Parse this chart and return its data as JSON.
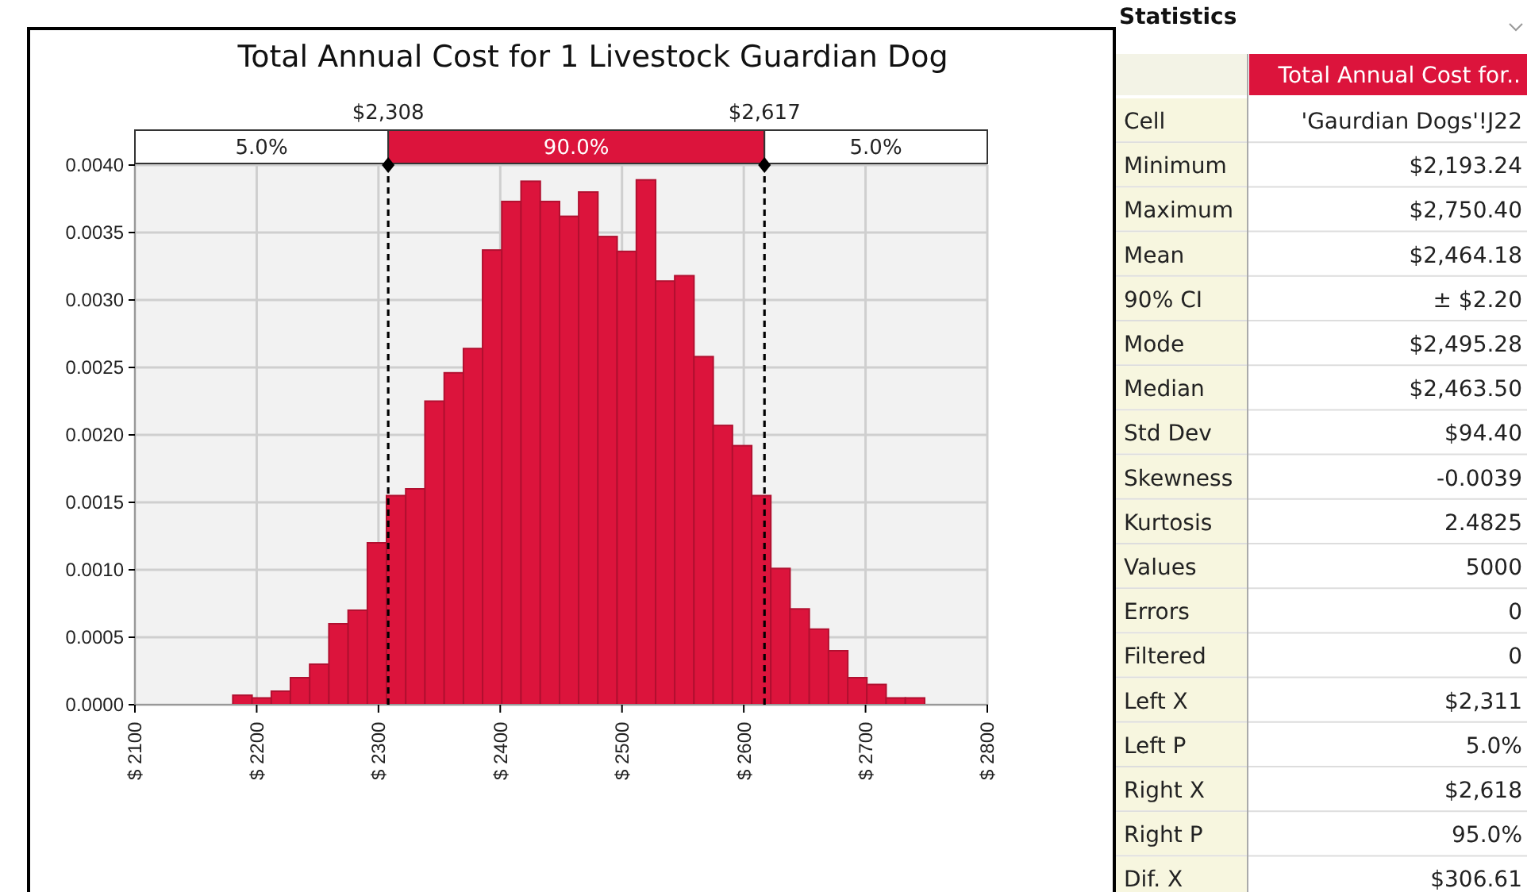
{
  "chart_data": [
    {
      "type": "histogram",
      "title": "Total Annual Cost for 1 Livestock Guardian Dog",
      "bins": [
        2180.4,
        2196.2,
        2212.0,
        2227.7,
        2243.5,
        2259.3,
        2275.1,
        2290.9,
        2306.6,
        2322.4,
        2338.2,
        2354.0,
        2369.8,
        2385.5,
        2401.3,
        2417.1,
        2432.9,
        2448.7,
        2464.4,
        2480.2,
        2496.0,
        2511.8,
        2527.6,
        2543.3,
        2559.1,
        2574.9,
        2590.7,
        2606.5,
        2622.2,
        2638.0,
        2653.8,
        2669.6,
        2685.4,
        2701.1,
        2716.9,
        2732.7,
        2748.5
      ],
      "values": [
        7e-05,
        5e-05,
        0.0001,
        0.0002,
        0.0003,
        0.0006,
        0.0007,
        0.0012,
        0.00155,
        0.0016,
        0.00225,
        0.00246,
        0.00264,
        0.00337,
        0.00373,
        0.00388,
        0.00373,
        0.00362,
        0.0038,
        0.00347,
        0.00336,
        0.00389,
        0.00314,
        0.00318,
        0.00258,
        0.00207,
        0.00192,
        0.00155,
        0.00101,
        0.00071,
        0.00056,
        0.0004,
        0.0002,
        0.00015,
        5e-05,
        5e-05
      ],
      "color": "#dc143c",
      "xlim": [
        2100,
        2800
      ],
      "xticks": [
        {
          "value": 2100,
          "label": "$ 2100"
        },
        {
          "value": 2200,
          "label": "$ 2200"
        },
        {
          "value": 2300,
          "label": "$ 2300"
        },
        {
          "value": 2400,
          "label": "$ 2400"
        },
        {
          "value": 2500,
          "label": "$ 2500"
        },
        {
          "value": 2600,
          "label": "$ 2600"
        },
        {
          "value": 2700,
          "label": "$ 2700"
        },
        {
          "value": 2800,
          "label": "$ 2800"
        }
      ],
      "ylim": [
        0,
        0.004
      ],
      "yticks": [
        {
          "value": 0,
          "label": "0.0000"
        },
        {
          "value": 0.0005,
          "label": "0.0005"
        },
        {
          "value": 0.001,
          "label": "0.0010"
        },
        {
          "value": 0.0015,
          "label": "0.0015"
        },
        {
          "value": 0.002,
          "label": "0.0020"
        },
        {
          "value": 0.0025,
          "label": "0.0025"
        },
        {
          "value": 0.003,
          "label": "0.0030"
        },
        {
          "value": 0.0035,
          "label": "0.0035"
        },
        {
          "value": 0.004,
          "label": "0.0040"
        }
      ],
      "grid": true,
      "ref_lines": [
        {
          "axis": "x",
          "value": 2308,
          "label": "$2,308",
          "line_style": "dashed",
          "color": "#000000"
        },
        {
          "axis": "x",
          "value": 2617,
          "label": "$2,617",
          "line_style": "dashed",
          "color": "#000000"
        }
      ],
      "annotations": [
        "5.0%",
        "90.0%",
        "5.0%"
      ]
    },
    {
      "type": "other",
      "title": "Statistics",
      "categories": [
        "Total Annual Cost for.."
      ],
      "y_categories": [
        "Cell",
        "Minimum",
        "Maximum",
        "Mean",
        "90% CI",
        "Mode",
        "Median",
        "Std Dev",
        "Skewness",
        "Kurtosis",
        "Values",
        "Errors",
        "Filtered",
        "Left X",
        "Left P",
        "Right X",
        "Right P",
        "Dif. X"
      ],
      "cell_labels": [
        [
          "'Gaurdian Dogs'!J22"
        ],
        [
          "$2,193.24"
        ],
        [
          "$2,750.40"
        ],
        [
          "$2,464.18"
        ],
        [
          "± $2.20"
        ],
        [
          "$2,495.28"
        ],
        [
          "$2,463.50"
        ],
        [
          "$94.40"
        ],
        [
          "-0.0039"
        ],
        [
          "2.4825"
        ],
        [
          "5000"
        ],
        [
          "0"
        ],
        [
          "0"
        ],
        [
          "$2,311"
        ],
        [
          "5.0%"
        ],
        [
          "$2,618"
        ],
        [
          "95.0%"
        ],
        [
          "$306.61"
        ]
      ]
    }
  ]
}
